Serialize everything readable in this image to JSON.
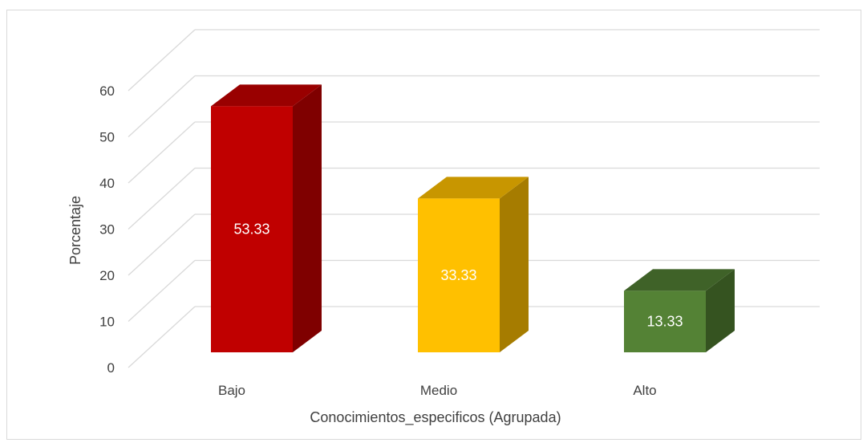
{
  "chart_data": {
    "type": "bar",
    "categories": [
      "Bajo",
      "Medio",
      "Alto"
    ],
    "values": [
      53.33,
      33.33,
      13.33
    ],
    "data_labels": [
      "53.33",
      "33.33",
      "13.33"
    ],
    "xlabel": "Conocimientos_especificos (Agrupada)",
    "ylabel": "Porcentaje",
    "ylim": [
      0,
      60
    ],
    "yticks": [
      "0",
      "10",
      "20",
      "30",
      "40",
      "50",
      "60"
    ],
    "grid": true,
    "style": "3d-column",
    "colors": {
      "Bajo": {
        "front": "#c00000",
        "side": "#7f0000",
        "top": "#990000"
      },
      "Medio": {
        "front": "#ffc000",
        "side": "#a67c00",
        "top": "#c89600"
      },
      "Alto": {
        "front": "#548235",
        "side": "#355320",
        "top": "#3f6228"
      }
    },
    "grid_color": "#d9d9d9",
    "text_color": "#404040"
  }
}
